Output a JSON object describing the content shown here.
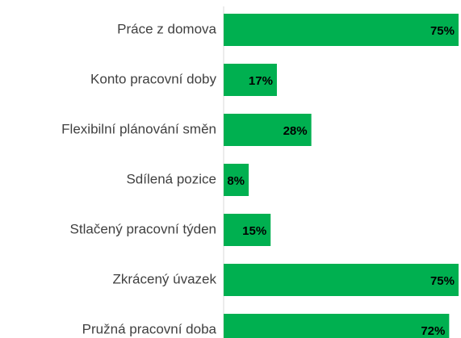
{
  "chart_data": {
    "type": "bar",
    "orientation": "horizontal",
    "categories": [
      "Práce z domova",
      "Konto pracovní doby",
      "Flexibilní plánování směn",
      "Sdílená pozice",
      "Stlačený pracovní týden",
      "Zkrácený úvazek",
      "Pružná pracovní doba"
    ],
    "values": [
      75,
      17,
      28,
      8,
      15,
      75,
      72
    ],
    "value_labels": [
      "75%",
      "17%",
      "28%",
      "8%",
      "15%",
      "75%",
      "72%"
    ],
    "color": "#00b050"
  }
}
